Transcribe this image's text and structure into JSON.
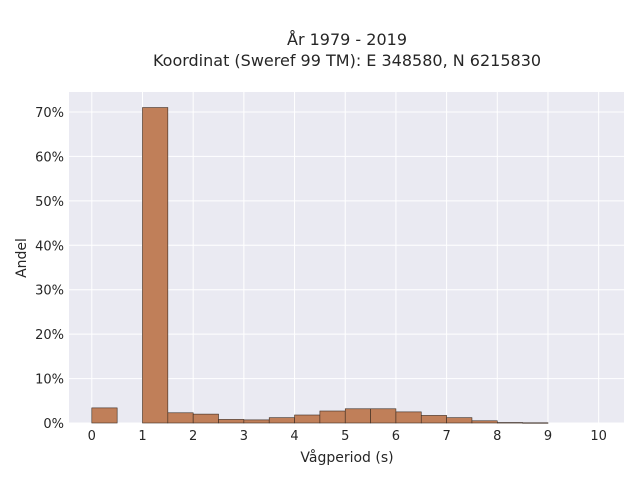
{
  "chart_data": {
    "type": "bar",
    "title_line1": "År 1979 - 2019",
    "title_line2": "Koordinat (Sweref 99 TM): E 348580, N 6215830",
    "xlabel": "Vågperiod (s)",
    "ylabel": "Andel",
    "xlim": [
      -0.45,
      10.5
    ],
    "ylim": [
      0,
      0.745
    ],
    "xticks": [
      0,
      1,
      2,
      3,
      4,
      5,
      6,
      7,
      8,
      9,
      10
    ],
    "yticks": [
      0,
      0.1,
      0.2,
      0.3,
      0.4,
      0.5,
      0.6,
      0.7
    ],
    "ytick_labels": [
      "0%",
      "10%",
      "20%",
      "30%",
      "40%",
      "50%",
      "60%",
      "70%"
    ],
    "bin_width": 0.5,
    "bin_starts": [
      0,
      0.5,
      1,
      1.5,
      2,
      2.5,
      3,
      3.5,
      4,
      4.5,
      5,
      5.5,
      6,
      6.5,
      7,
      7.5,
      8,
      8.5,
      9,
      9.5
    ],
    "values": [
      0.034,
      0.0,
      0.71,
      0.023,
      0.02,
      0.008,
      0.007,
      0.012,
      0.018,
      0.027,
      0.032,
      0.032,
      0.025,
      0.017,
      0.012,
      0.005,
      0.001,
      0.0005,
      0.0,
      0.0
    ],
    "grid": true,
    "bar_color": "#c07f59",
    "bar_edge_color": "#3a2a20",
    "background_color": "#eaeaf2",
    "grid_color": "#ffffff"
  }
}
